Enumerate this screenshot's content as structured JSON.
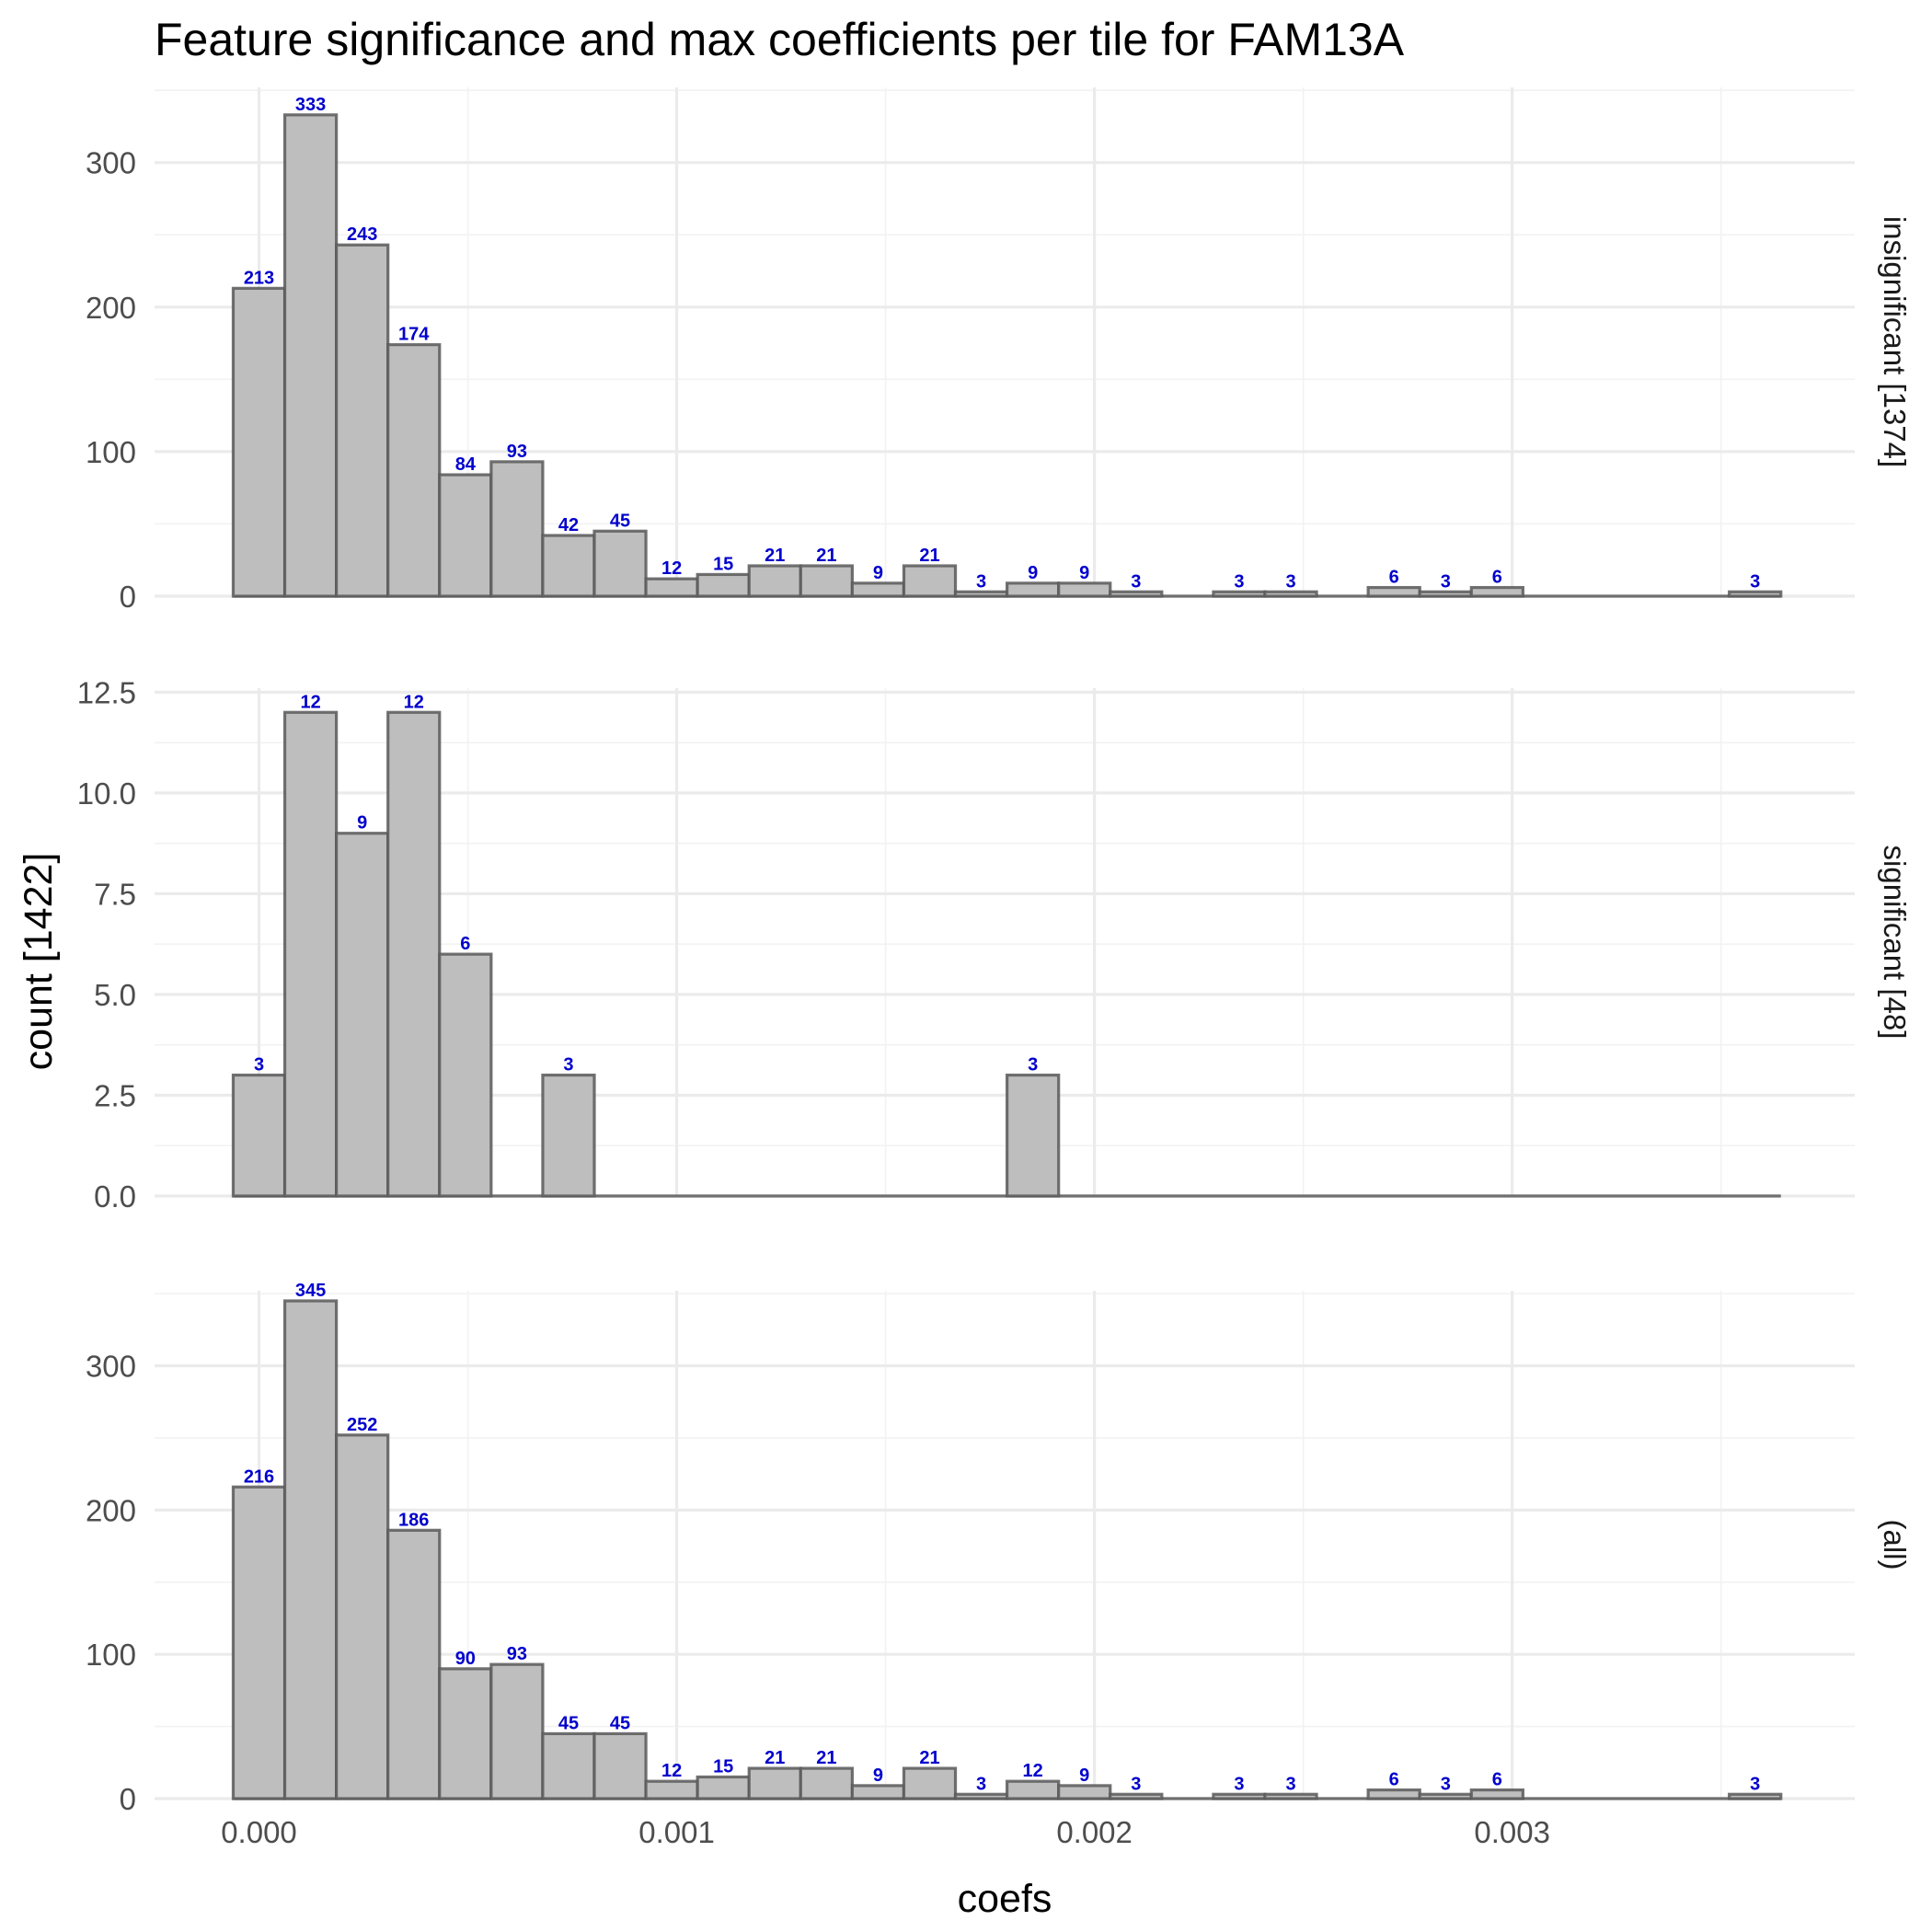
{
  "chart_data": {
    "type": "bar",
    "title": "Feature significance and max coefficients per tile for FAM13A",
    "xlabel": "coefs",
    "ylabel": "count [1422]",
    "xlim": [
      -0.00025,
      0.00382
    ],
    "x_ticks": [
      0.0,
      0.001,
      0.002,
      0.003
    ],
    "x_tick_labels": [
      "0.000",
      "0.001",
      "0.002",
      "0.003"
    ],
    "bin_width": 0.0001235,
    "bin_centers": [
      0.0,
      0.0001235,
      0.000247,
      0.0003705,
      0.000494,
      0.0006175,
      0.000741,
      0.0008645,
      0.000988,
      0.0011115,
      0.001235,
      0.0013585,
      0.001482,
      0.0016055,
      0.001729,
      0.0018525,
      0.001976,
      0.0020995,
      0.002223,
      0.0023465,
      0.00247,
      0.0025935,
      0.002717,
      0.0028405,
      0.002964,
      0.0030875,
      0.003211,
      0.0033345,
      0.003458,
      0.0035815
    ],
    "grid": true,
    "panels": [
      {
        "strip": "insignificant [1374]",
        "ylim": [
          0,
          352
        ],
        "y_ticks": [
          0,
          100,
          200,
          300
        ],
        "y_tick_labels": [
          "0",
          "100",
          "200",
          "300"
        ],
        "counts": [
          213,
          333,
          243,
          174,
          84,
          93,
          42,
          45,
          12,
          15,
          21,
          21,
          9,
          21,
          3,
          9,
          9,
          3,
          0,
          3,
          3,
          0,
          6,
          3,
          6,
          0,
          0,
          0,
          0,
          3
        ]
      },
      {
        "strip": "significant [48]",
        "ylim": [
          0,
          12.6
        ],
        "y_ticks": [
          0,
          2.5,
          5,
          7.5,
          10,
          12.5
        ],
        "y_tick_labels": [
          "0.0",
          "2.5",
          "5.0",
          "7.5",
          "10.0",
          "12.5"
        ],
        "counts": [
          3,
          12,
          9,
          12,
          6,
          0,
          3,
          0,
          0,
          0,
          0,
          0,
          0,
          0,
          0,
          3,
          0,
          0,
          0,
          0,
          0,
          0,
          0,
          0,
          0,
          0,
          0,
          0,
          0,
          0
        ]
      },
      {
        "strip": "(all)",
        "ylim": [
          0,
          352
        ],
        "y_ticks": [
          0,
          100,
          200,
          300
        ],
        "y_tick_labels": [
          "0",
          "100",
          "200",
          "300"
        ],
        "counts": [
          216,
          345,
          252,
          186,
          90,
          93,
          45,
          45,
          12,
          15,
          21,
          21,
          9,
          21,
          3,
          12,
          9,
          3,
          0,
          3,
          3,
          0,
          6,
          3,
          6,
          0,
          0,
          0,
          0,
          3
        ]
      }
    ]
  }
}
